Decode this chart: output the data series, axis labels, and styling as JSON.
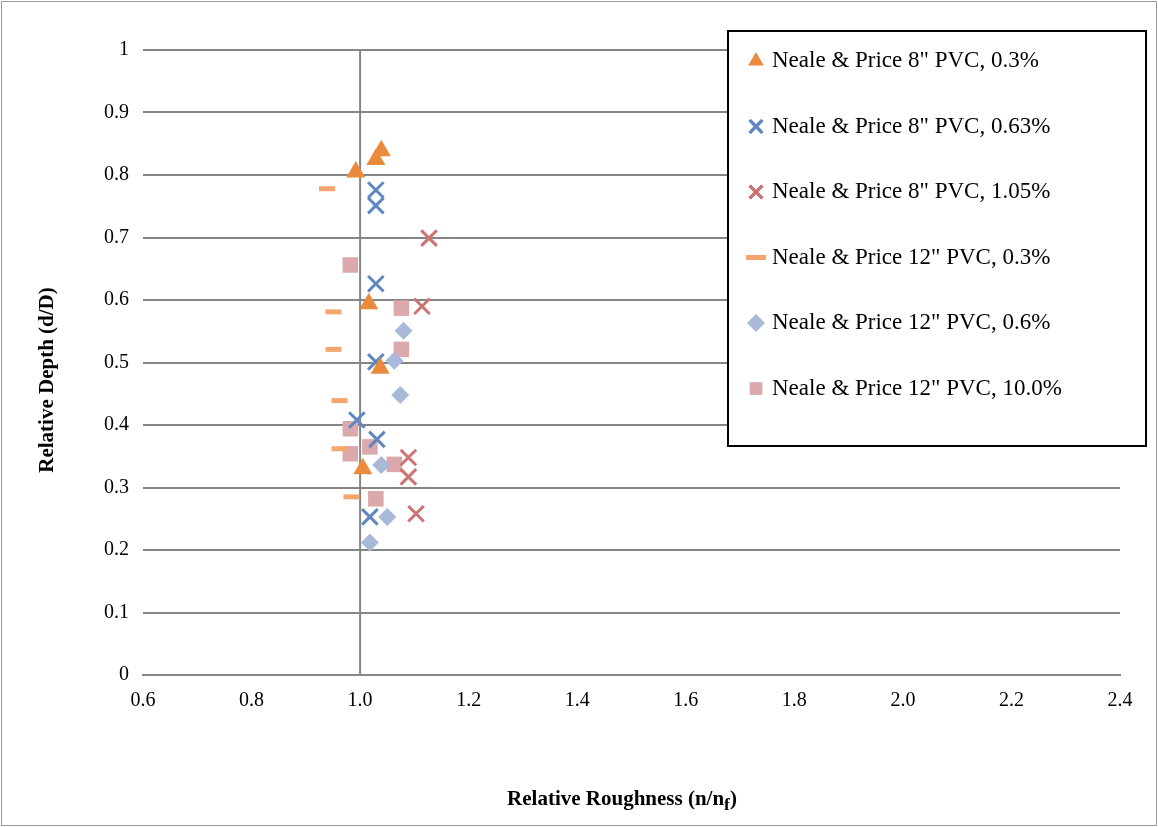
{
  "chart_data": {
    "type": "scatter",
    "xlabel": "Relative Roughness (n/n$_{f}$)",
    "ylabel": "Relative Depth (d/D)",
    "xlim": [
      0.6,
      2.4
    ],
    "xticks": [
      {
        "value": 0.6,
        "label": "0.6"
      },
      {
        "value": 0.8,
        "label": "0.8"
      },
      {
        "value": 1.0,
        "label": "1.0"
      },
      {
        "value": 1.2,
        "label": "1.2"
      },
      {
        "value": 1.4,
        "label": "1.4"
      },
      {
        "value": 1.6,
        "label": "1.6"
      },
      {
        "value": 1.8,
        "label": "1.8"
      },
      {
        "value": 2.0,
        "label": "2.0"
      },
      {
        "value": 2.2,
        "label": "2.2"
      },
      {
        "value": 2.4,
        "label": "2.4"
      }
    ],
    "ylim": [
      0,
      1
    ],
    "yticks": [
      0,
      0.1,
      0.2,
      0.3,
      0.4,
      0.5,
      0.6,
      0.7,
      0.8,
      0.9,
      1
    ],
    "grid": "y",
    "legend": "top right",
    "ref_lines": [
      {
        "axis": "x",
        "value": 1.0,
        "color": "#858585"
      }
    ],
    "series": [
      {
        "name": "Neale & Price 8\" PVC, 0.3%",
        "color": "#ea8a3c",
        "marker": "triangle",
        "x": [
          0.992,
          1.029,
          1.039,
          1.016,
          1.037,
          1.005
        ],
        "values": [
          0.805,
          0.825,
          0.839,
          0.594,
          0.491,
          0.33
        ]
      },
      {
        "name": "Neale & Price 8\" PVC, 0.63%",
        "color": "#5f88c2",
        "marker": "cross",
        "x": [
          1.029,
          1.029,
          1.029,
          1.029,
          0.994,
          1.031,
          1.018
        ],
        "values": [
          0.776,
          0.751,
          0.626,
          0.501,
          0.408,
          0.377,
          0.253
        ]
      },
      {
        "name": "Neale & Price 8\" PVC, 1.05%",
        "color": "#cd7474",
        "marker": "cross",
        "x": [
          1.127,
          1.114,
          1.089,
          1.089,
          1.103
        ],
        "values": [
          0.699,
          0.59,
          0.348,
          0.317,
          0.258
        ]
      },
      {
        "name": "Neale & Price 12\" PVC, 0.3%",
        "color": "#f5a56e",
        "x": [
          0.939,
          0.951,
          0.951,
          0.962,
          0.962,
          0.984
        ],
        "values": [
          0.778,
          0.581,
          0.521,
          0.439,
          0.362,
          0.285
        ]
      },
      {
        "name": "Neale & Price 12\" PVC, 0.6%",
        "color": "#a9b9d8",
        "marker": "diamond",
        "x": [
          1.08,
          1.063,
          1.074,
          1.039,
          1.05,
          1.018
        ],
        "values": [
          0.551,
          0.503,
          0.448,
          0.336,
          0.253,
          0.212
        ]
      },
      {
        "name": "Neale & Price 12\" PVC, 10.0%",
        "color": "#dba9ab",
        "marker": "square",
        "x": [
          0.982,
          1.076,
          1.076,
          0.982,
          1.018,
          0.982,
          1.063,
          1.029
        ],
        "values": [
          0.656,
          0.587,
          0.521,
          0.394,
          0.365,
          0.354,
          0.337,
          0.282
        ]
      }
    ]
  }
}
